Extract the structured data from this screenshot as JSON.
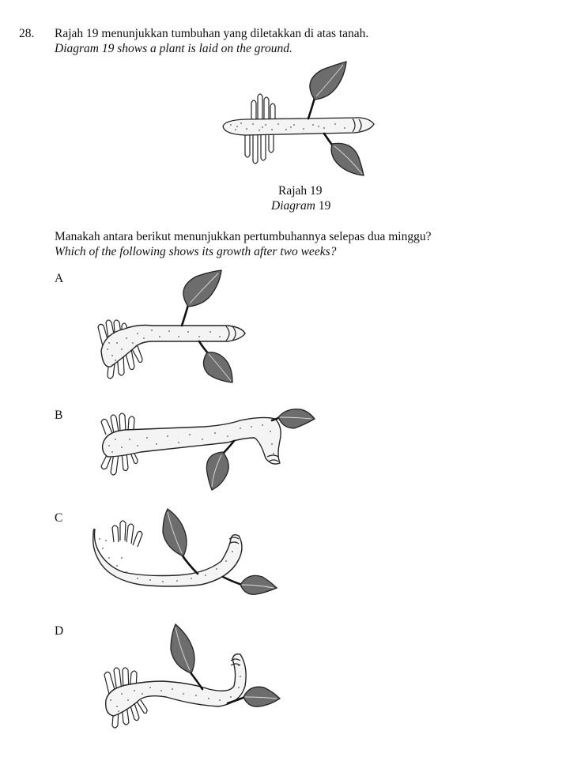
{
  "question": {
    "number": "28.",
    "stem_ms": "Rajah 19 menunjukkan tumbuhan yang diletakkan di atas tanah.",
    "stem_en_italic": "Diagram",
    "stem_en_rest": "19 shows a plant is laid on the ground."
  },
  "figure": {
    "caption_ms": "Rajah 19",
    "caption_en_italic": "Diagram",
    "caption_en_number": "19"
  },
  "prompt": {
    "ms": "Manakah antara berikut menunjukkan pertumbuhannya selepas dua minggu?",
    "en": "Which of the following shows its growth after two weeks?"
  },
  "options": [
    {
      "label": "A"
    },
    {
      "label": "B"
    },
    {
      "label": "C"
    },
    {
      "label": "D"
    }
  ],
  "colors": {
    "leaf": "#6d6d6d",
    "stem": "#f4f4f4",
    "outline": "#222222"
  }
}
